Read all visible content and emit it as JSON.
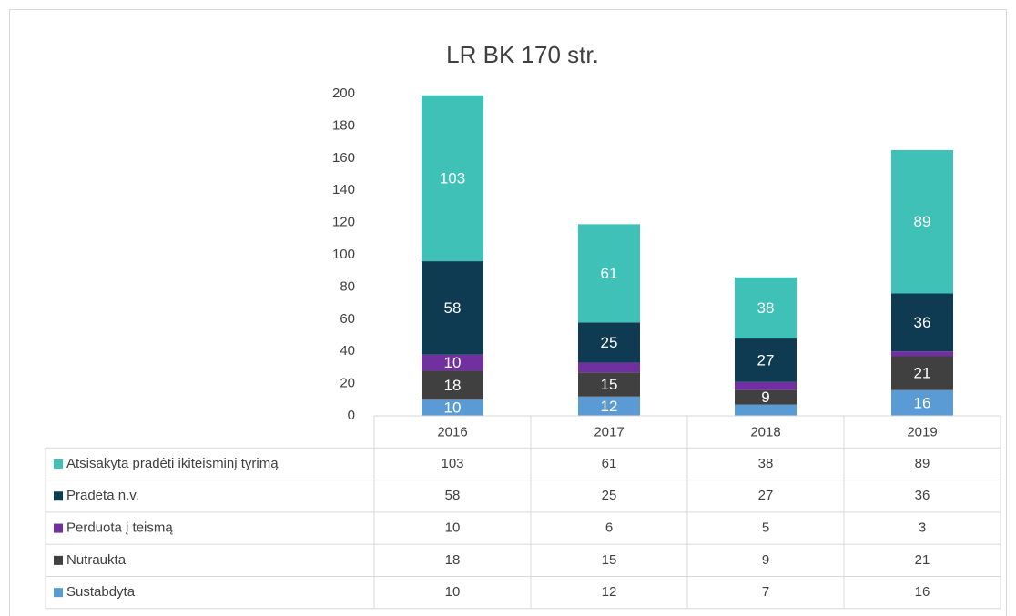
{
  "chart_data": {
    "type": "bar",
    "stacked": true,
    "title": "LR BK 170 str.",
    "categories": [
      "2016",
      "2017",
      "2018",
      "2019"
    ],
    "series": [
      {
        "name": "Sustabdyta",
        "color": "#5b9bd5",
        "values": [
          10,
          12,
          7,
          16
        ]
      },
      {
        "name": "Nutraukta",
        "color": "#404040",
        "values": [
          18,
          15,
          9,
          21
        ]
      },
      {
        "name": "Perduota į teismą",
        "color": "#7030a0",
        "values": [
          10,
          6,
          5,
          3
        ]
      },
      {
        "name": "Pradėta n.v.",
        "color": "#0e3b51",
        "values": [
          58,
          25,
          27,
          36
        ]
      },
      {
        "name": "Atsisakyta pradėti ikiteisminį tyrimą",
        "color": "#3fc1b8",
        "values": [
          103,
          61,
          38,
          89
        ]
      }
    ],
    "ylim": [
      0,
      200
    ],
    "yticks": [
      0,
      20,
      40,
      60,
      80,
      100,
      120,
      140,
      160,
      180,
      200
    ],
    "data_table": true
  }
}
